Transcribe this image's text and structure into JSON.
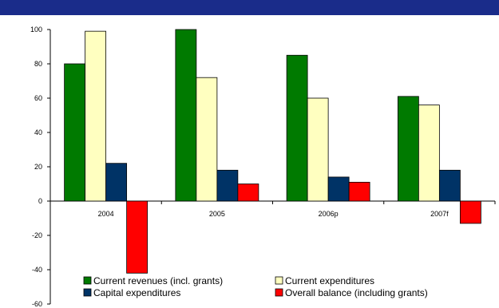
{
  "header": {
    "band_color": "#1a2c8a"
  },
  "chart_data": {
    "type": "bar",
    "categories": [
      "2004",
      "2005",
      "2006p",
      "2007f"
    ],
    "series": [
      {
        "name": "Current revenues (incl. grants)",
        "color": "#007a00",
        "values": [
          80,
          100,
          85,
          61
        ]
      },
      {
        "name": "Current expenditures",
        "color": "#ffffc0",
        "values": [
          99,
          72,
          60,
          56
        ]
      },
      {
        "name": "Capital expenditures",
        "color": "#003366",
        "values": [
          22,
          18,
          14,
          18
        ]
      },
      {
        "name": "Overall balance (including grants)",
        "color": "#ff0000",
        "values": [
          -42,
          10,
          11,
          -13
        ]
      }
    ],
    "y_ticks": [
      "100",
      "80",
      "60",
      "40",
      "20",
      "0",
      "-20",
      "-40",
      "-60"
    ],
    "ylim": [
      -60,
      100
    ],
    "grid": false,
    "legend_position": "bottom"
  }
}
